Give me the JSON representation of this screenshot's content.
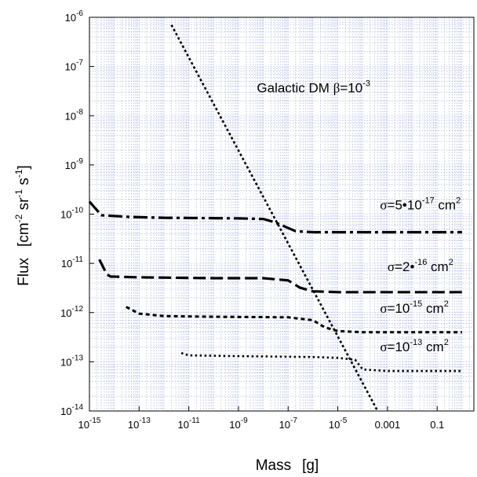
{
  "chart_data": {
    "type": "line",
    "title": "",
    "xlabel": {
      "main": "Mass",
      "unit": "[g]"
    },
    "ylabel": {
      "main": "Flux",
      "unit_parts": [
        "[cm",
        "-2",
        " sr",
        "-1",
        " s",
        "-1",
        "]"
      ]
    },
    "x_scale": "log",
    "y_scale": "log",
    "xlim": [
      1e-15,
      3
    ],
    "ylim": [
      1e-14,
      1e-06
    ],
    "grid": true,
    "x_ticks": [
      {
        "value": 1e-15,
        "base": "10",
        "exp": "-15"
      },
      {
        "value": 1e-13,
        "base": "10",
        "exp": "-13"
      },
      {
        "value": 1e-11,
        "base": "10",
        "exp": "-11"
      },
      {
        "value": 1e-09,
        "base": "10",
        "exp": "-9"
      },
      {
        "value": 1e-07,
        "base": "10",
        "exp": "-7"
      },
      {
        "value": 1e-05,
        "base": "10",
        "exp": "-5"
      },
      {
        "value": 0.001,
        "base": "0.001",
        "exp": ""
      },
      {
        "value": 0.1,
        "base": "0.1",
        "exp": ""
      }
    ],
    "y_ticks": [
      {
        "value": 1e-14,
        "base": "10",
        "exp": "-14"
      },
      {
        "value": 1e-13,
        "base": "10",
        "exp": "-13"
      },
      {
        "value": 1e-12,
        "base": "10",
        "exp": "-12"
      },
      {
        "value": 1e-11,
        "base": "10",
        "exp": "-11"
      },
      {
        "value": 1e-10,
        "base": "10",
        "exp": "-10"
      },
      {
        "value": 1e-09,
        "base": "10",
        "exp": "-9"
      },
      {
        "value": 1e-08,
        "base": "10",
        "exp": "-8"
      },
      {
        "value": 1e-07,
        "base": "10",
        "exp": "-7"
      },
      {
        "value": 1e-06,
        "base": "10",
        "exp": "-6"
      }
    ],
    "series": [
      {
        "id": "galactic-dm",
        "style": "dotted-bold",
        "color": "#000000",
        "points": [
          [
            2e-12,
            7e-07
          ],
          [
            0.0004,
            1e-14
          ]
        ]
      },
      {
        "id": "sigma-5e-17",
        "style": "long-dash-dot",
        "color": "#000000",
        "points": [
          [
            1e-15,
            1.8e-10
          ],
          [
            3e-15,
            9.5e-11
          ],
          [
            4e-14,
            8.8e-11
          ],
          [
            1e-12,
            8.4e-11
          ],
          [
            1e-09,
            8.2e-11
          ],
          [
            1e-08,
            8e-11
          ],
          [
            3e-08,
            6.8e-11
          ],
          [
            8e-08,
            5.5e-11
          ],
          [
            2e-07,
            4.5e-11
          ],
          [
            1e-06,
            4.3e-11
          ],
          [
            0.0001,
            4.3e-11
          ],
          [
            1,
            4.3e-11
          ]
        ]
      },
      {
        "id": "sigma-2e-16",
        "style": "long-dash",
        "color": "#000000",
        "points": [
          [
            2.5e-15,
            1.2e-11
          ],
          [
            5e-15,
            6e-12
          ],
          [
            7e-15,
            5.4e-12
          ],
          [
            1e-13,
            5.2e-12
          ],
          [
            1e-10,
            5e-12
          ],
          [
            1e-08,
            5e-12
          ],
          [
            1e-07,
            4.5e-12
          ],
          [
            3e-07,
            3.2e-12
          ],
          [
            1e-06,
            2.7e-12
          ],
          [
            1e-05,
            2.6e-12
          ],
          [
            1,
            2.6e-12
          ]
        ]
      },
      {
        "id": "sigma-1e-15",
        "style": "short-dash",
        "color": "#000000",
        "points": [
          [
            3e-14,
            1.3e-12
          ],
          [
            1e-13,
            9.5e-13
          ],
          [
            1e-12,
            8.5e-13
          ],
          [
            1e-10,
            8.2e-13
          ],
          [
            1e-07,
            8e-13
          ],
          [
            1e-06,
            7e-13
          ],
          [
            3e-06,
            5e-13
          ],
          [
            1e-05,
            4.2e-13
          ],
          [
            0.0001,
            4e-13
          ],
          [
            1,
            4e-13
          ]
        ]
      },
      {
        "id": "sigma-1e-13",
        "style": "dotted",
        "color": "#000000",
        "points": [
          [
            5e-12,
            1.5e-13
          ],
          [
            1e-11,
            1.35e-13
          ],
          [
            1e-09,
            1.3e-13
          ],
          [
            1e-06,
            1.25e-13
          ],
          [
            1e-05,
            1.2e-13
          ],
          [
            5e-05,
            1.1e-13
          ],
          [
            0.0001,
            7e-14
          ],
          [
            0.001,
            6.5e-14
          ],
          [
            1,
            6.5e-14
          ]
        ]
      }
    ],
    "annotations": [
      {
        "id": "label-galactic",
        "at": [
          5.5e-09,
          3e-08
        ],
        "parts": [
          {
            "t": "Galactic DM  "
          },
          {
            "t": "β",
            "serif": true
          },
          {
            "t": "=10"
          },
          {
            "t": "-3",
            "sup": true
          }
        ]
      },
      {
        "id": "label-sigma-5e-17",
        "at": [
          0.0005,
          1.25e-10
        ],
        "parts": [
          {
            "t": "σ",
            "serif": true
          },
          {
            "t": "=5•10"
          },
          {
            "t": "-17",
            "sup": true
          },
          {
            "t": "  cm"
          },
          {
            "t": "2",
            "sup": true
          }
        ]
      },
      {
        "id": "label-sigma-2e-16",
        "at": [
          0.001,
          7e-12
        ],
        "parts": [
          {
            "t": "σ",
            "serif": true
          },
          {
            "t": "=2•"
          },
          {
            "t": "-16",
            "sup": true
          },
          {
            "t": "  cm"
          },
          {
            "t": "2",
            "sup": true
          }
        ]
      },
      {
        "id": "label-sigma-1e-15",
        "at": [
          0.0005,
          1e-12
        ],
        "parts": [
          {
            "t": "σ",
            "serif": true
          },
          {
            "t": "=10"
          },
          {
            "t": "-15",
            "sup": true
          },
          {
            "t": "  cm"
          },
          {
            "t": "2",
            "sup": true
          }
        ]
      },
      {
        "id": "label-sigma-1e-13",
        "at": [
          0.0005,
          1.65e-13
        ],
        "parts": [
          {
            "t": "σ",
            "serif": true
          },
          {
            "t": "=10"
          },
          {
            "t": "-13",
            "sup": true
          },
          {
            "t": "  cm"
          },
          {
            "t": "2",
            "sup": true
          }
        ]
      }
    ]
  }
}
